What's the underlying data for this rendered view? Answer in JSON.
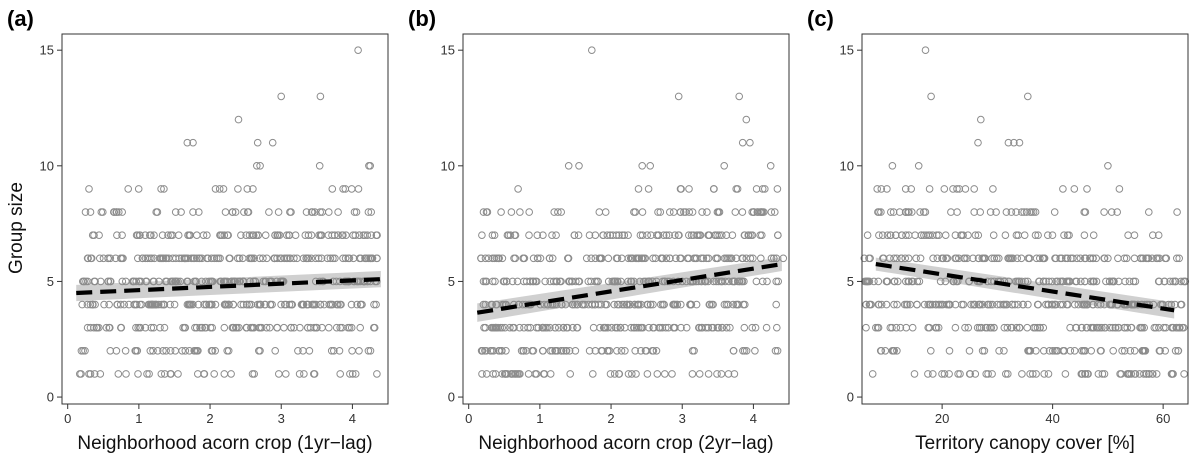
{
  "ylabel": "Group size",
  "chart_data": [
    {
      "type": "scatter",
      "panel_label": "(a)",
      "xlabel": "Neighborhood acorn crop (1yr−lag)",
      "ylabel": "Group size",
      "xlim": [
        -0.08,
        4.5
      ],
      "ylim": [
        -0.3,
        15.7
      ],
      "xticks": [
        0,
        1,
        2,
        3,
        4
      ],
      "yticks": [
        0,
        5,
        10,
        15
      ],
      "seed": 11,
      "n_points": 620,
      "fit": {
        "x": [
          0.12,
          4.4
        ],
        "y": [
          4.5,
          5.1
        ],
        "band_halfwidth": [
          0.35,
          0.35
        ]
      },
      "outliers": [
        [
          4.08,
          15
        ],
        [
          3.0,
          13
        ],
        [
          3.55,
          13
        ],
        [
          2.4,
          12
        ],
        [
          1.68,
          11
        ],
        [
          1.76,
          11
        ],
        [
          2.67,
          11
        ],
        [
          2.88,
          11
        ],
        [
          0.3,
          9
        ],
        [
          0.85,
          9
        ],
        [
          0.25,
          8
        ],
        [
          0.32,
          8
        ],
        [
          0.28,
          6
        ],
        [
          0.3,
          1
        ],
        [
          0.38,
          1
        ],
        [
          1.55,
          1
        ],
        [
          2.62,
          1
        ],
        [
          1.92,
          1
        ],
        [
          2.2,
          1
        ],
        [
          4.25,
          10
        ]
      ],
      "colors": {
        "points": "#8c8c8c",
        "fit": "#000000",
        "band": "#c8c8c8"
      }
    },
    {
      "type": "scatter",
      "panel_label": "(b)",
      "xlabel": "Neighborhood acorn crop (2yr−lag)",
      "ylabel": "",
      "xlim": [
        -0.08,
        4.5
      ],
      "ylim": [
        -0.3,
        15.7
      ],
      "xticks": [
        0,
        1,
        2,
        3,
        4
      ],
      "yticks": [
        0,
        5,
        10,
        15
      ],
      "seed": 23,
      "n_points": 620,
      "fit": {
        "x": [
          0.12,
          4.4
        ],
        "y": [
          3.65,
          5.75
        ],
        "band_halfwidth": [
          0.4,
          0.3
        ]
      },
      "outliers": [
        [
          1.73,
          15
        ],
        [
          2.95,
          13
        ],
        [
          3.8,
          13
        ],
        [
          3.9,
          12
        ],
        [
          3.85,
          11
        ],
        [
          3.95,
          11
        ],
        [
          0.25,
          8
        ],
        [
          0.6,
          8
        ],
        [
          0.72,
          8
        ],
        [
          0.85,
          8
        ],
        [
          1.55,
          10
        ],
        [
          2.55,
          10
        ],
        [
          2.35,
          1
        ],
        [
          2.65,
          1
        ],
        [
          3.55,
          1
        ],
        [
          3.65,
          1
        ],
        [
          0.35,
          2
        ],
        [
          4.42,
          6
        ]
      ],
      "colors": {
        "points": "#8c8c8c",
        "fit": "#000000",
        "band": "#c8c8c8"
      }
    },
    {
      "type": "scatter",
      "panel_label": "(c)",
      "xlabel": "Territory canopy cover [%]",
      "ylabel": "",
      "xlim": [
        5.5,
        64.5
      ],
      "ylim": [
        -0.3,
        15.7
      ],
      "xticks": [
        20,
        40,
        60
      ],
      "yticks": [
        0,
        5,
        10,
        15
      ],
      "seed": 37,
      "n_points": 620,
      "fit": {
        "x": [
          8,
          62
        ],
        "y": [
          5.75,
          3.75
        ],
        "band_halfwidth": [
          0.28,
          0.35
        ]
      },
      "outliers": [
        [
          17,
          15
        ],
        [
          18,
          13
        ],
        [
          35.5,
          13
        ],
        [
          27,
          12
        ],
        [
          26.5,
          11
        ],
        [
          32,
          11
        ],
        [
          33,
          11
        ],
        [
          34,
          11
        ],
        [
          9,
          9
        ],
        [
          10,
          9
        ],
        [
          8,
          3
        ],
        [
          8.5,
          3
        ],
        [
          9,
          2
        ],
        [
          15,
          1
        ],
        [
          25,
          1
        ],
        [
          37,
          1
        ],
        [
          49,
          1
        ],
        [
          55,
          1
        ],
        [
          57,
          1
        ],
        [
          58,
          6
        ],
        [
          50,
          10
        ]
      ],
      "colors": {
        "points": "#8c8c8c",
        "fit": "#000000",
        "band": "#c8c8c8"
      }
    }
  ]
}
